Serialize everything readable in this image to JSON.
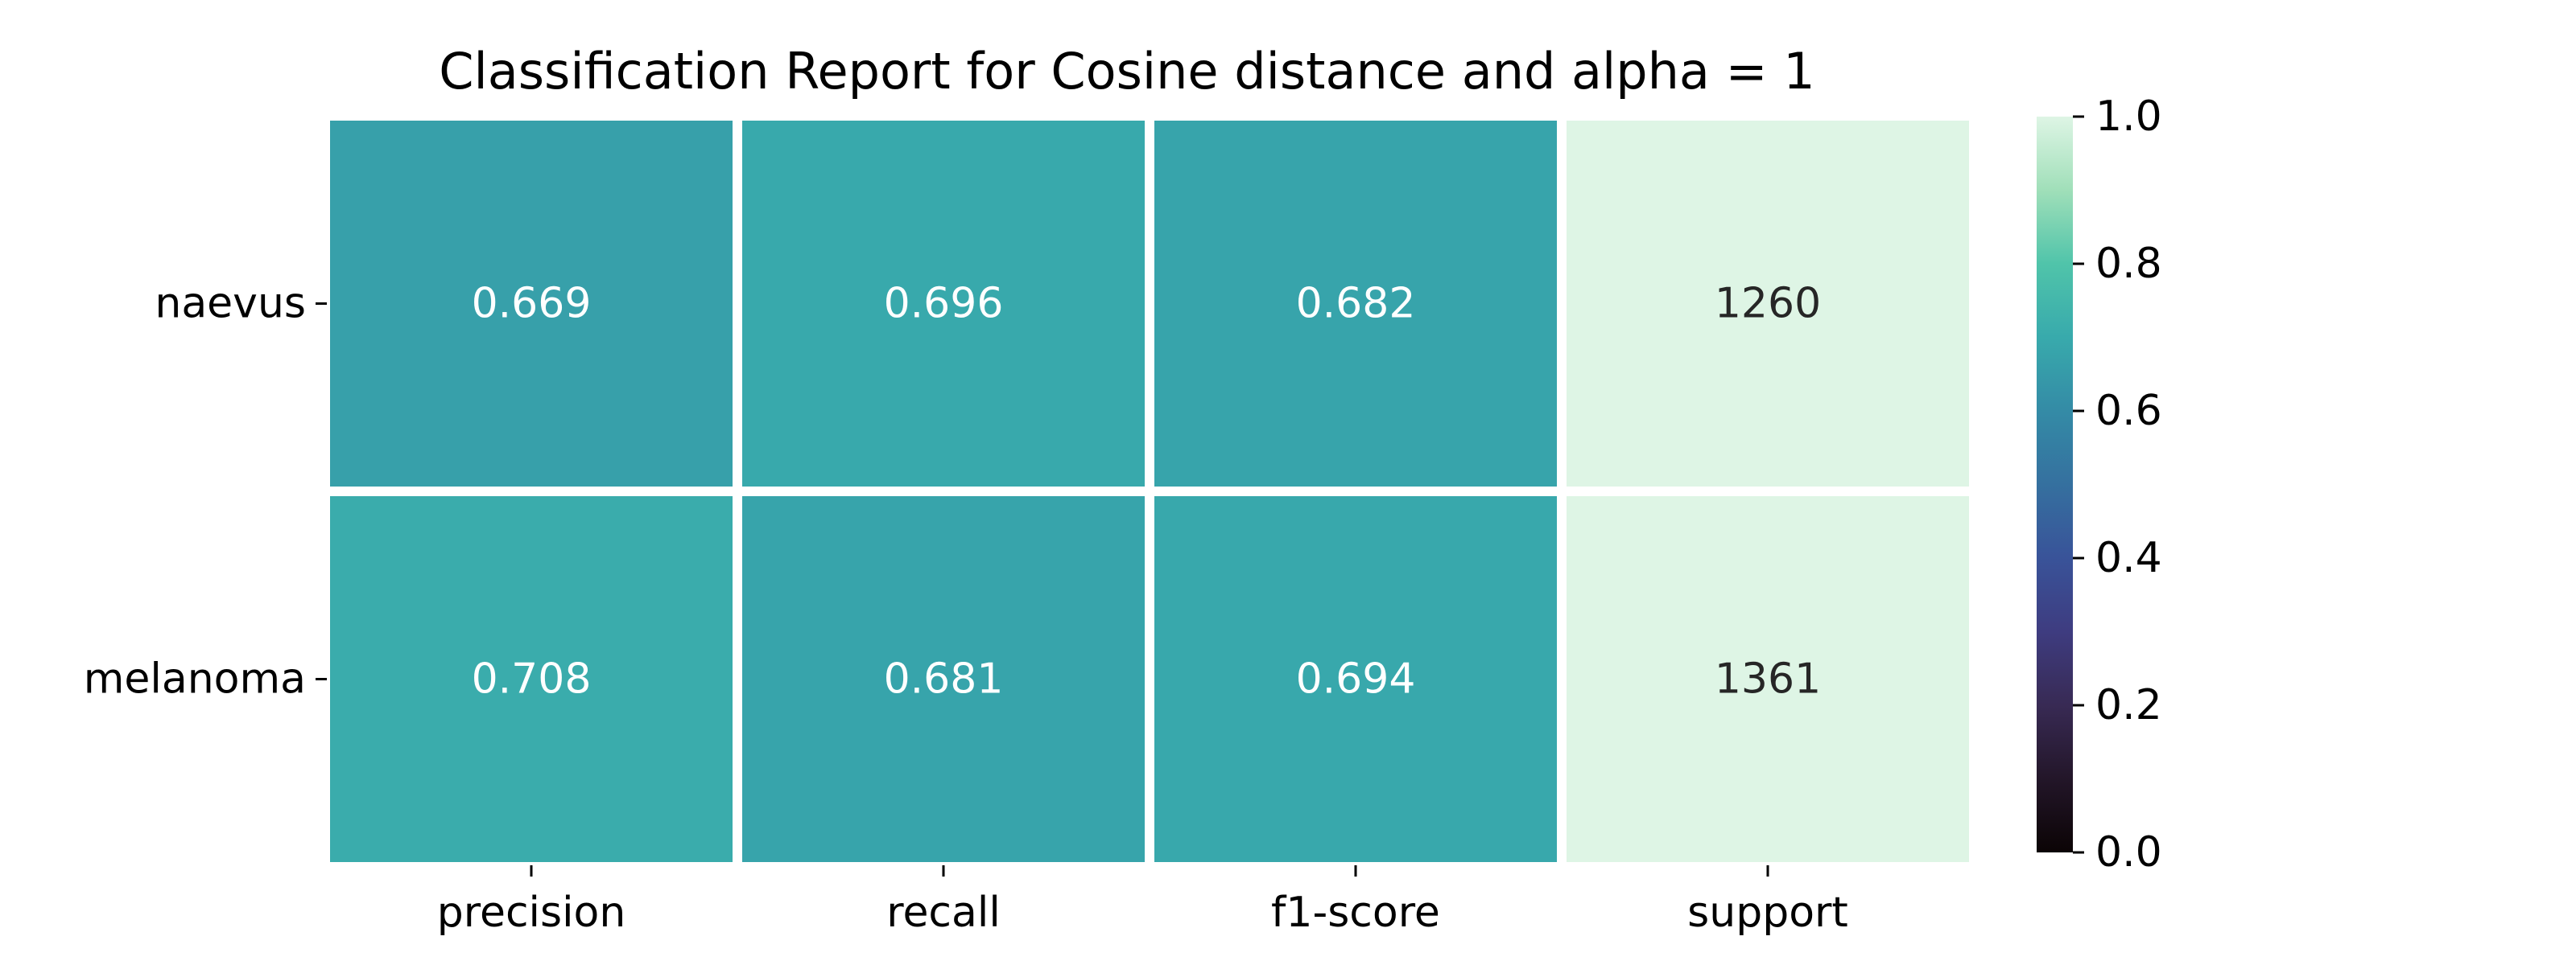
{
  "chart_data": {
    "type": "heatmap",
    "title": "Classification Report for Cosine distance and alpha = 1",
    "xlabel": "",
    "ylabel": "",
    "columns": [
      "precision",
      "recall",
      "f1-score",
      "support"
    ],
    "rows": [
      "naevus",
      "melanoma"
    ],
    "values": [
      [
        0.669,
        0.696,
        0.682,
        1260
      ],
      [
        0.708,
        0.681,
        0.694,
        1361
      ]
    ],
    "cell_labels": [
      [
        "0.669",
        "0.696",
        "0.682",
        "1260"
      ],
      [
        "0.708",
        "0.681",
        "0.694",
        "1361"
      ]
    ],
    "color_range": [
      0,
      1
    ],
    "colormap": "mako",
    "colorbar": {
      "range": [
        0,
        1
      ],
      "ticks": [
        0.0,
        0.2,
        0.4,
        0.6,
        0.8,
        1.0
      ],
      "tick_labels": [
        "0.0",
        "0.2",
        "0.4",
        "0.6",
        "0.8",
        "1.0"
      ],
      "placement": "right"
    },
    "grid": false,
    "legend": "none"
  }
}
